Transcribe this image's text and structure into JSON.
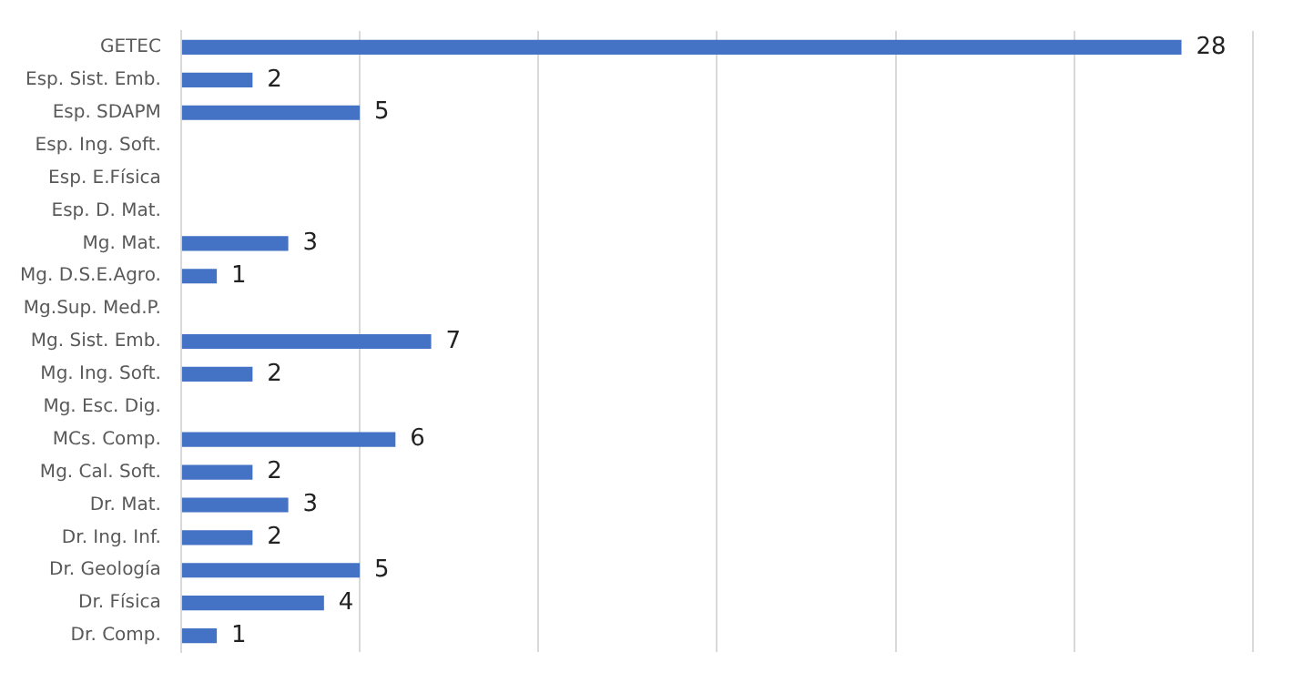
{
  "chart_data": {
    "type": "bar",
    "orientation": "horizontal",
    "categories": [
      "GETEC",
      "Esp. Sist. Emb.",
      "Esp. SDAPM",
      "Esp. Ing. Soft.",
      "Esp. E.Física",
      "Esp. D. Mat.",
      "Mg. Mat.",
      "Mg. D.S.E.Agro.",
      "Mg.Sup. Med.P.",
      "Mg. Sist. Emb.",
      "Mg. Ing. Soft.",
      "Mg. Esc. Dig.",
      "MCs. Comp.",
      "Mg. Cal. Soft.",
      "Dr. Mat.",
      "Dr. Ing. Inf.",
      "Dr. Geología",
      "Dr. Física",
      "Dr. Comp."
    ],
    "values": [
      28,
      2,
      5,
      null,
      null,
      null,
      3,
      1,
      null,
      7,
      2,
      null,
      6,
      2,
      3,
      2,
      5,
      4,
      1
    ],
    "color": "#4472c4",
    "xlim": [
      0,
      30
    ],
    "xticks": [
      {
        "value": 0,
        "label": null
      },
      {
        "value": 5,
        "label": null
      },
      {
        "value": 10,
        "label": null
      },
      {
        "value": 15,
        "label": null
      },
      {
        "value": 20,
        "label": null
      },
      {
        "value": 25,
        "label": null
      },
      {
        "value": 30,
        "label": null
      }
    ],
    "tick_labels": "y",
    "grid": "x",
    "data_labels": true,
    "legend": false
  }
}
